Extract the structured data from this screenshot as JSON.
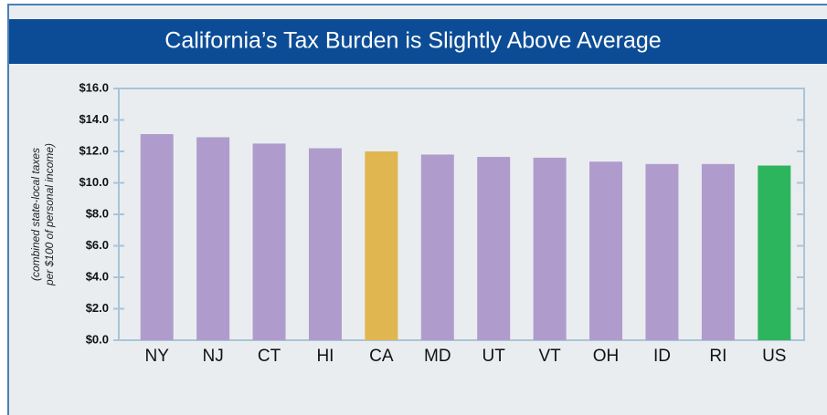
{
  "chart_data": {
    "type": "bar",
    "title": "California’s Tax Burden is Slightly Above Average",
    "ylabel": [
      "(combined state-local taxes",
      "per $100 of personal income)"
    ],
    "categories": [
      "NY",
      "NJ",
      "CT",
      "HI",
      "CA",
      "MD",
      "UT",
      "VT",
      "OH",
      "ID",
      "RI",
      "US"
    ],
    "values": [
      13.1,
      12.9,
      12.5,
      12.2,
      12.0,
      11.8,
      11.65,
      11.6,
      11.35,
      11.2,
      11.2,
      11.1
    ],
    "colors": [
      "#b09ccc",
      "#b09ccc",
      "#b09ccc",
      "#b09ccc",
      "#e0b651",
      "#b09ccc",
      "#b09ccc",
      "#b09ccc",
      "#b09ccc",
      "#b09ccc",
      "#b09ccc",
      "#2db55d"
    ],
    "ylim": [
      0,
      16
    ],
    "yticks": [
      {
        "value": 0,
        "label": "$0.0"
      },
      {
        "value": 2,
        "label": "$2.0"
      },
      {
        "value": 4,
        "label": "$4.0"
      },
      {
        "value": 6,
        "label": "$6.0"
      },
      {
        "value": 8,
        "label": "$8.0"
      },
      {
        "value": 10,
        "label": "$10.0"
      },
      {
        "value": 12,
        "label": "$12.0"
      },
      {
        "value": 14,
        "label": "$14.0"
      },
      {
        "value": 16,
        "label": "$16.0"
      }
    ]
  }
}
